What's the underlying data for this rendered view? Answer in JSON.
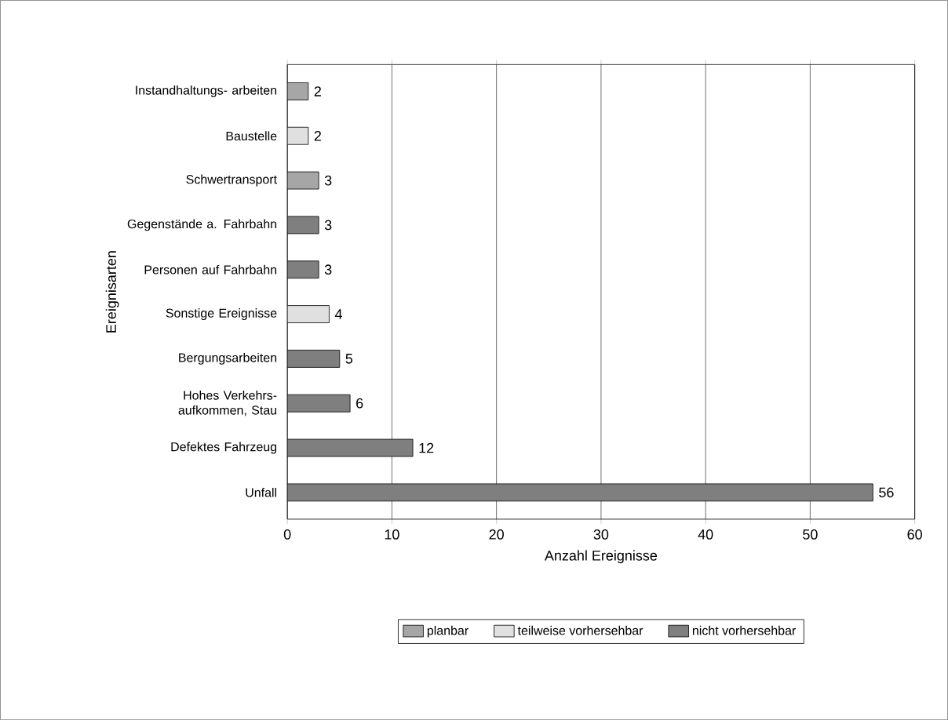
{
  "chart_data": {
    "type": "bar",
    "orientation": "horizontal",
    "xlabel": "Anzahl Ereignisse",
    "ylabel": "Ereignisarten",
    "categories": [
      "Instandhaltungs- arbeiten",
      "Baustelle",
      "Schwertransport",
      "Gegenstände a. Fahrbahn",
      "Personen auf Fahrbahn",
      "Sonstige Ereignisse",
      "Bergungsarbeiten",
      "Hohes Verkehrs- aufkommen, Stau",
      "Defektes Fahrzeug",
      "Unfall"
    ],
    "series": [
      {
        "name": "planbar",
        "color": "#a6a6a6",
        "values": [
          2,
          null,
          3,
          null,
          null,
          null,
          null,
          null,
          null,
          null
        ]
      },
      {
        "name": "teilweise vorhersehbar",
        "color": "#e0e0e0",
        "values": [
          null,
          2,
          null,
          null,
          null,
          4,
          null,
          null,
          null,
          null
        ]
      },
      {
        "name": "nicht vorhersehbar",
        "color": "#7f7f7f",
        "values": [
          null,
          null,
          null,
          3,
          3,
          null,
          5,
          6,
          12,
          56
        ]
      }
    ],
    "xlim": [
      0,
      60
    ],
    "xticks": [
      0,
      10,
      20,
      30,
      40,
      50,
      60
    ],
    "grid": "x",
    "legend": "bottom",
    "data_labels": true
  }
}
